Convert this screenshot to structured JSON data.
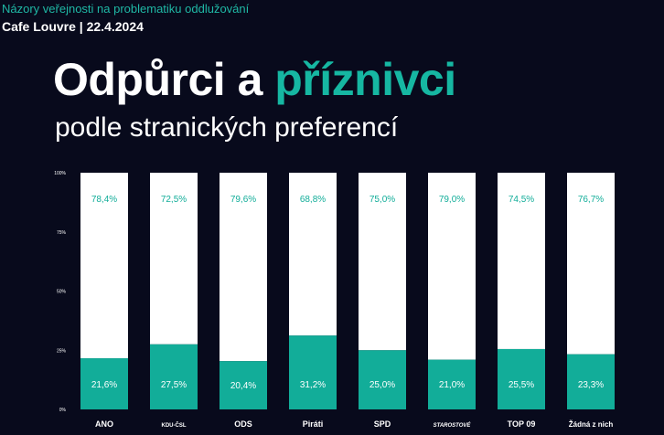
{
  "header": {
    "survey_title": "Názory veřejnosti na problematiku oddlužování",
    "event": "Cafe Louvre | 22.4.2024"
  },
  "title": {
    "part1": "Odpůrci a ",
    "part2": "příznivci",
    "line2": "podle stranických preferencí"
  },
  "chart_data": {
    "type": "bar",
    "stacked": true,
    "categories": [
      "ANO",
      "KDU-ČSL",
      "ODS",
      "Piráti",
      "SPD",
      "STAROSTOVÉ",
      "TOP 09",
      "Žádná z nich"
    ],
    "series": [
      {
        "values": [
          21.6,
          27.5,
          20.4,
          31.2,
          25.0,
          21.0,
          25.5,
          23.3
        ],
        "labels": [
          "21,6%",
          "27,5%",
          "20,4%",
          "31,2%",
          "25,0%",
          "21,0%",
          "25,5%",
          "23,3%"
        ],
        "color": "#12ad99"
      },
      {
        "values": [
          78.4,
          72.5,
          79.6,
          68.8,
          75.0,
          79.0,
          74.5,
          76.7
        ],
        "labels": [
          "78,4%",
          "72,5%",
          "79,6%",
          "68,8%",
          "75,0%",
          "79,0%",
          "74,5%",
          "76,7%"
        ],
        "color": "#ffffff"
      }
    ],
    "y_ticks": [
      "0%",
      "25%",
      "50%",
      "75%",
      "100%"
    ],
    "ylim": [
      0,
      100
    ],
    "grid": false,
    "colors": {
      "accent": "#16b7a2",
      "background": "#080a1c",
      "label_on_white": "#12ad99",
      "label_on_teal": "#ffffff"
    }
  }
}
